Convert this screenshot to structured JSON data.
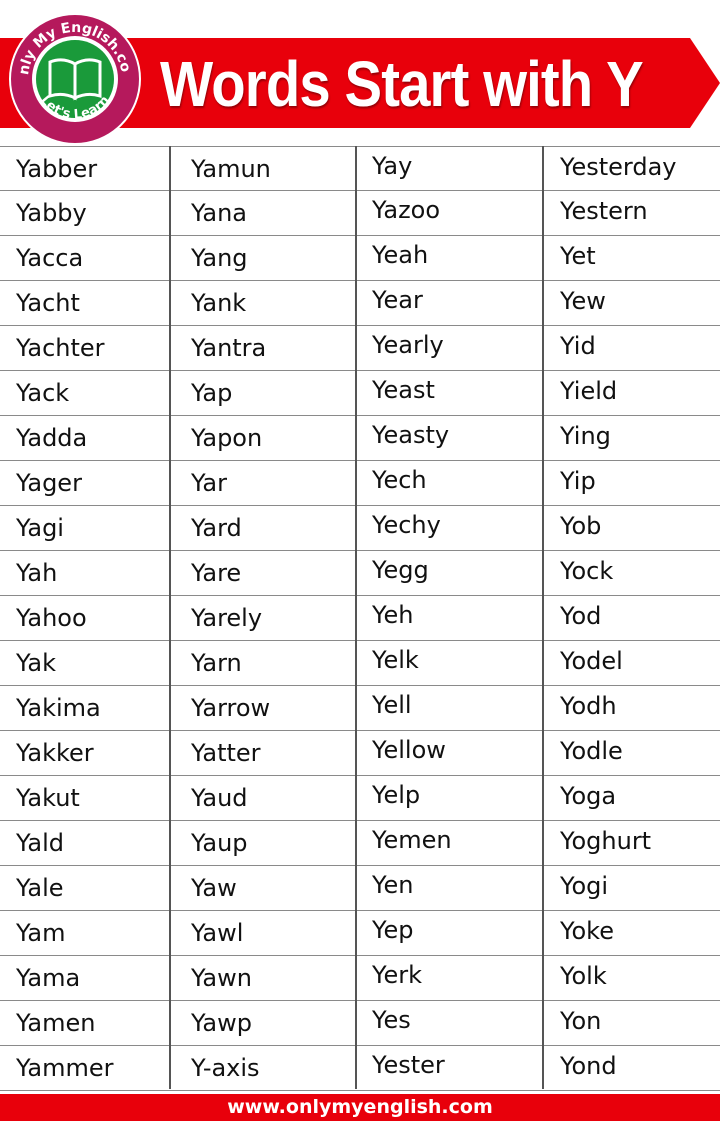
{
  "header": {
    "title": "Words Start with Y",
    "logo_text_top": "Only My English.com",
    "logo_text_bottom": "Let's Learn",
    "colors": {
      "banner": "#e8000b",
      "logo_ring": "#b5195c",
      "logo_center": "#1a9a3a"
    }
  },
  "columns": [
    [
      "Yabber",
      "Yabby",
      "Yacca",
      "Yacht",
      "Yachter",
      "Yack",
      "Yadda",
      "Yager",
      "Yagi",
      "Yah",
      "Yahoo",
      "Yak",
      "Yakima",
      "Yakker",
      "Yakut",
      "Yald",
      "Yale",
      "Yam",
      "Yama",
      "Yamen",
      "Yammer"
    ],
    [
      "Yamun",
      "Yana",
      "Yang",
      "Yank",
      "Yantra",
      "Yap",
      "Yapon",
      "Yar",
      "Yard",
      "Yare",
      "Yarely",
      "Yarn",
      "Yarrow",
      "Yatter",
      "Yaud",
      "Yaup",
      "Yaw",
      "Yawl",
      "Yawn",
      "Yawp",
      "Y-axis"
    ],
    [
      "Yay",
      "Yazoo",
      "Yeah",
      "Year",
      "Yearly",
      "Yeast",
      "Yeasty",
      "Yech",
      "Yechy",
      "Yegg",
      "Yeh",
      "Yelk",
      "Yell",
      "Yellow",
      "Yelp",
      "Yemen",
      "Yen",
      "Yep",
      "Yerk",
      "Yes",
      "Yester"
    ],
    [
      "Yesterday",
      "Yestern",
      "Yet",
      "Yew",
      "Yid",
      "Yield",
      "Ying",
      "Yip",
      "Yob",
      "Yock",
      "Yod",
      "Yodel",
      "Yodh",
      "Yodle",
      "Yoga",
      "Yoghurt",
      "Yogi",
      "Yoke",
      "Yolk",
      "Yon",
      "Yond"
    ]
  ],
  "footer": {
    "url": "www.onlymyenglish.com"
  }
}
